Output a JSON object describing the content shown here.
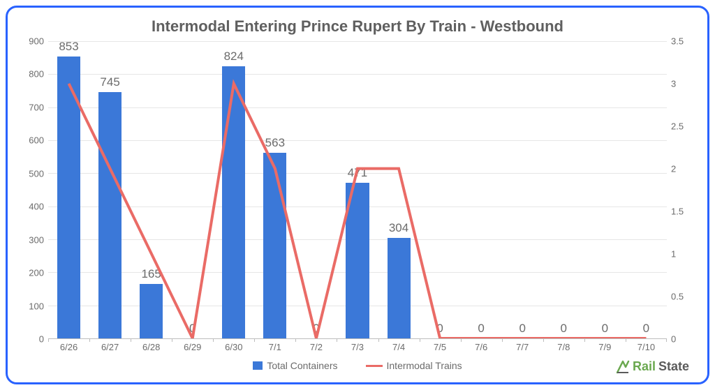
{
  "chart": {
    "title": "Intermodal Entering Prince Rupert By Train - Westbound",
    "title_fontsize": 22,
    "title_color": "#5f5f5f",
    "border_color": "#2962ff",
    "border_radius": 16,
    "background_color": "#ffffff",
    "grid_color": "#e6e6e6",
    "axis_text_color": "#6b6b6b",
    "categories": [
      "6/26",
      "6/27",
      "6/28",
      "6/29",
      "6/30",
      "7/1",
      "7/2",
      "7/3",
      "7/4",
      "7/5",
      "7/6",
      "7/7",
      "7/8",
      "7/9",
      "7/10"
    ],
    "bars": {
      "label": "Total Containers",
      "color": "#3b78d8",
      "values": [
        853,
        745,
        165,
        0,
        824,
        563,
        0,
        471,
        304,
        0,
        0,
        0,
        0,
        0,
        0
      ],
      "bar_width": 0.56,
      "data_label_fontsize": 17,
      "data_label_color": "#6b6b6b"
    },
    "line": {
      "label": "Intermodal Trains",
      "color": "#ea6b66",
      "stroke_width": 4,
      "values": [
        3,
        2,
        1,
        0,
        3,
        2,
        0,
        2,
        2,
        0,
        0,
        0,
        0,
        0,
        0
      ]
    },
    "y_left": {
      "min": 0,
      "max": 900,
      "step": 100
    },
    "y_right": {
      "min": 0,
      "max": 3.5,
      "step": 0.5
    },
    "legend": {
      "items": [
        "Total Containers",
        "Intermodal Trains"
      ]
    },
    "logo": {
      "text1": "Rail",
      "text2": "State",
      "color1": "#6aa84f",
      "color2": "#5b5b5b"
    }
  }
}
